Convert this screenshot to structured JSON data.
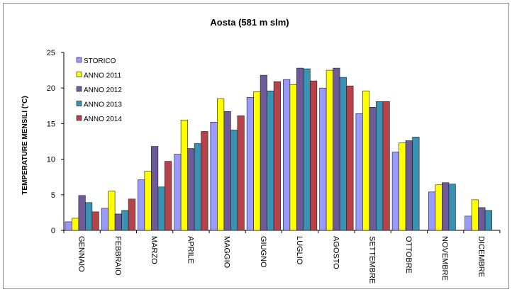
{
  "chart_data": {
    "type": "bar",
    "title": "Aosta (581 m slm)",
    "xlabel": "",
    "ylabel": "TEMPERATURE MENSILI (°C)",
    "ylim": [
      0,
      25
    ],
    "yticks": [
      0,
      5,
      10,
      15,
      20,
      25
    ],
    "grid": false,
    "legend_position": "top-left",
    "categories": [
      "GENNAIO",
      "FEBBRAIO",
      "MARZO",
      "APRILE",
      "MAGGIO",
      "GIUGNO",
      "LUGLIO",
      "AGOSTO",
      "SETTEMBRE",
      "OTTOBRE",
      "NOVEMBRE",
      "DICEMBRE"
    ],
    "series": [
      {
        "name": "STORICO",
        "color": "#9999ff",
        "values": [
          1.2,
          3.1,
          7.1,
          10.7,
          15.2,
          18.7,
          21.2,
          20.0,
          16.4,
          11.0,
          5.4,
          2.0
        ]
      },
      {
        "name": "ANNO 2011",
        "color": "#ffff00",
        "values": [
          1.7,
          5.5,
          8.3,
          15.5,
          18.5,
          19.5,
          20.5,
          22.5,
          19.6,
          12.3,
          6.4,
          4.3
        ]
      },
      {
        "name": "ANNO 2012",
        "color": "#6e5a9a",
        "values": [
          4.9,
          2.3,
          11.8,
          11.5,
          16.7,
          21.8,
          22.8,
          22.8,
          17.3,
          12.6,
          6.7,
          3.2
        ]
      },
      {
        "name": "ANNO 2013",
        "color": "#3a92b3",
        "values": [
          3.9,
          2.8,
          6.1,
          12.2,
          14.1,
          19.6,
          22.7,
          21.5,
          18.1,
          13.1,
          6.5,
          2.8
        ]
      },
      {
        "name": "ANNO 2014",
        "color": "#b7434a",
        "values": [
          2.6,
          4.4,
          9.7,
          13.9,
          16.1,
          20.9,
          21.0,
          20.3,
          18.1,
          null,
          null,
          null
        ]
      }
    ]
  }
}
